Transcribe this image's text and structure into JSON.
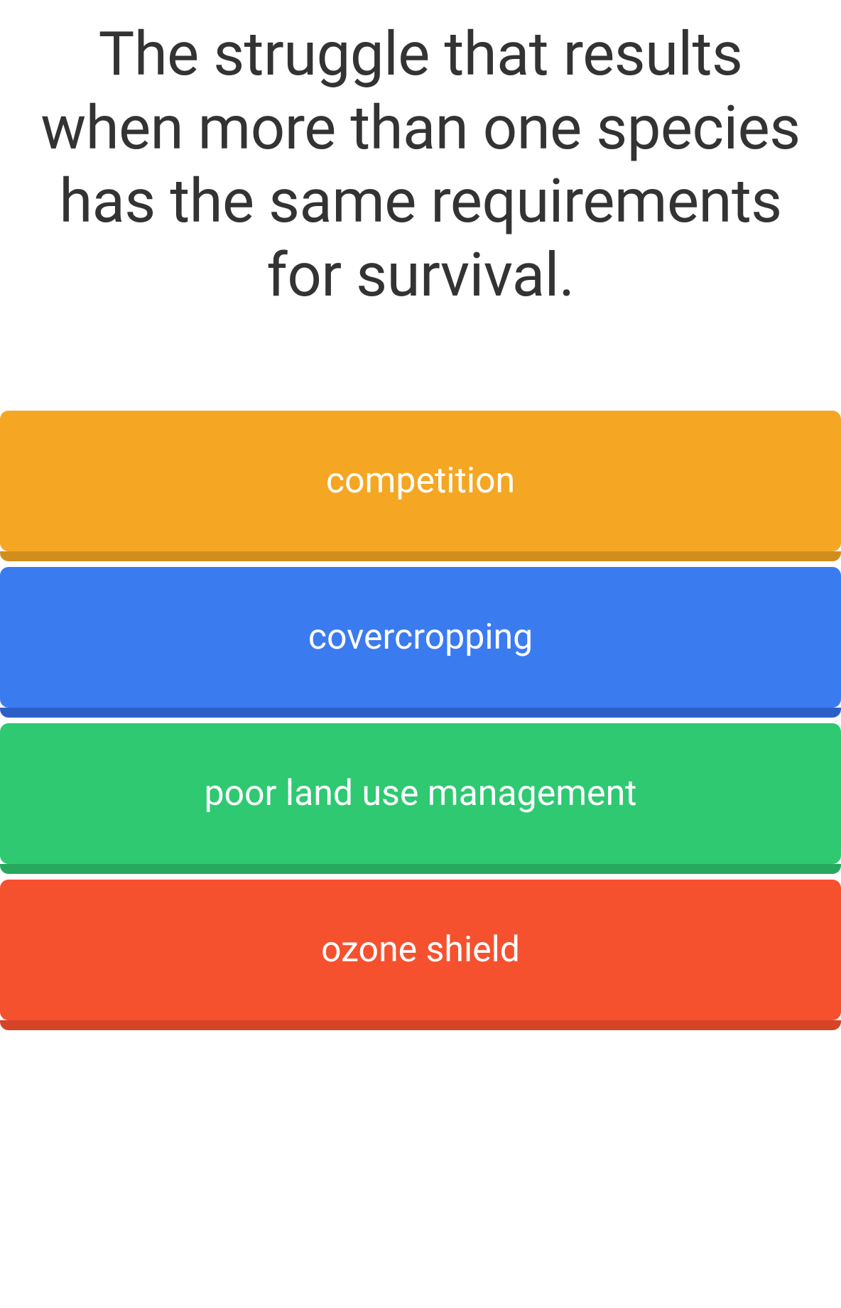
{
  "question": {
    "text": "The struggle that results when more than one species has the same requirements for survival.",
    "color": "#333333",
    "fontsize": 85
  },
  "answers": [
    {
      "label": "competition",
      "bg_color": "#f5a623",
      "shadow_color": "#d18e1e"
    },
    {
      "label": "covercropping",
      "bg_color": "#3b7bf0",
      "shadow_color": "#2e5fc7"
    },
    {
      "label": "poor land use management",
      "bg_color": "#2ec971",
      "shadow_color": "#27a85f"
    },
    {
      "label": "ozone shield",
      "bg_color": "#f6512f",
      "shadow_color": "#d64428"
    }
  ],
  "layout": {
    "background_color": "#ffffff",
    "answer_height": 198,
    "answer_gap": 22,
    "answer_fontsize": 50,
    "answer_text_color": "#ffffff"
  }
}
